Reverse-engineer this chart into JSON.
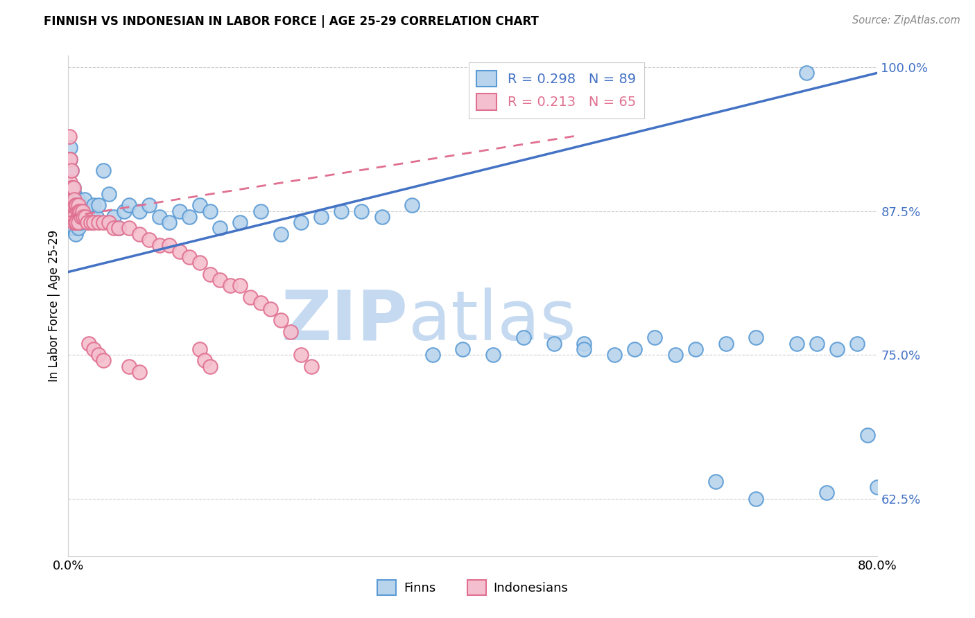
{
  "title": "FINNISH VS INDONESIAN IN LABOR FORCE | AGE 25-29 CORRELATION CHART",
  "source": "Source: ZipAtlas.com",
  "ylabel": "In Labor Force | Age 25-29",
  "xlim": [
    0.0,
    0.8
  ],
  "ylim": [
    0.575,
    1.01
  ],
  "yticks": [
    0.625,
    0.75,
    0.875,
    1.0
  ],
  "ytick_labels": [
    "62.5%",
    "75.0%",
    "87.5%",
    "100.0%"
  ],
  "xticks": [
    0.0,
    0.1,
    0.2,
    0.3,
    0.4,
    0.5,
    0.6,
    0.7,
    0.8
  ],
  "xtick_labels": [
    "0.0%",
    "",
    "",
    "",
    "",
    "",
    "",
    "",
    "80.0%"
  ],
  "finn_color": "#b8d4ed",
  "finn_edge_color": "#5b9bd5",
  "indonesian_color": "#f4bfce",
  "indonesian_edge_color": "#e07090",
  "finn_line_color": "#4472c4",
  "indo_line_color": "#e07090",
  "finn_R": 0.298,
  "finn_N": 89,
  "indonesian_R": 0.213,
  "indonesian_N": 65,
  "legend_label_finn": "Finns",
  "legend_label_indonesian": "Indonesians",
  "watermark_zip": "ZIP",
  "watermark_atlas": "atlas",
  "finn_line_x0": 0.0,
  "finn_line_y0": 0.822,
  "finn_line_x1": 0.8,
  "finn_line_y1": 0.995,
  "indo_line_x0": 0.0,
  "indo_line_y0": 0.87,
  "indo_line_x1": 0.5,
  "indo_line_y1": 0.94,
  "finn_scatter_x": [
    0.001,
    0.001,
    0.001,
    0.002,
    0.002,
    0.002,
    0.002,
    0.003,
    0.003,
    0.003,
    0.003,
    0.003,
    0.004,
    0.004,
    0.004,
    0.005,
    0.005,
    0.005,
    0.006,
    0.006,
    0.006,
    0.007,
    0.007,
    0.007,
    0.008,
    0.008,
    0.009,
    0.01,
    0.01,
    0.011,
    0.012,
    0.013,
    0.014,
    0.015,
    0.016,
    0.018,
    0.02,
    0.022,
    0.025,
    0.028,
    0.03,
    0.035,
    0.04,
    0.045,
    0.05,
    0.055,
    0.06,
    0.07,
    0.08,
    0.09,
    0.1,
    0.11,
    0.12,
    0.13,
    0.14,
    0.15,
    0.17,
    0.19,
    0.21,
    0.23,
    0.25,
    0.27,
    0.29,
    0.31,
    0.34,
    0.36,
    0.39,
    0.42,
    0.45,
    0.48,
    0.51,
    0.51,
    0.54,
    0.56,
    0.58,
    0.6,
    0.62,
    0.65,
    0.68,
    0.72,
    0.74,
    0.76,
    0.78,
    0.79,
    0.8,
    0.75,
    0.68,
    0.64,
    0.73
  ],
  "finn_scatter_y": [
    0.88,
    0.87,
    0.86,
    0.93,
    0.92,
    0.91,
    0.87,
    0.91,
    0.895,
    0.88,
    0.87,
    0.86,
    0.88,
    0.87,
    0.86,
    0.895,
    0.88,
    0.86,
    0.89,
    0.875,
    0.86,
    0.88,
    0.87,
    0.855,
    0.875,
    0.865,
    0.87,
    0.885,
    0.86,
    0.875,
    0.87,
    0.865,
    0.87,
    0.875,
    0.885,
    0.87,
    0.875,
    0.87,
    0.88,
    0.87,
    0.88,
    0.91,
    0.89,
    0.87,
    0.86,
    0.875,
    0.88,
    0.875,
    0.88,
    0.87,
    0.865,
    0.875,
    0.87,
    0.88,
    0.875,
    0.86,
    0.865,
    0.875,
    0.855,
    0.865,
    0.87,
    0.875,
    0.875,
    0.87,
    0.88,
    0.75,
    0.755,
    0.75,
    0.765,
    0.76,
    0.76,
    0.755,
    0.75,
    0.755,
    0.765,
    0.75,
    0.755,
    0.76,
    0.765,
    0.76,
    0.76,
    0.755,
    0.76,
    0.68,
    0.635,
    0.63,
    0.625,
    0.64,
    0.995
  ],
  "indo_scatter_x": [
    0.001,
    0.001,
    0.001,
    0.002,
    0.002,
    0.003,
    0.003,
    0.003,
    0.004,
    0.004,
    0.004,
    0.005,
    0.005,
    0.005,
    0.006,
    0.006,
    0.007,
    0.007,
    0.008,
    0.008,
    0.009,
    0.01,
    0.01,
    0.011,
    0.012,
    0.013,
    0.014,
    0.015,
    0.017,
    0.019,
    0.022,
    0.025,
    0.03,
    0.035,
    0.04,
    0.045,
    0.05,
    0.06,
    0.07,
    0.08,
    0.09,
    0.1,
    0.11,
    0.12,
    0.13,
    0.14,
    0.15,
    0.16,
    0.17,
    0.18,
    0.19,
    0.2,
    0.21,
    0.22,
    0.23,
    0.24,
    0.02,
    0.025,
    0.03,
    0.035,
    0.13,
    0.135,
    0.14,
    0.06,
    0.07
  ],
  "indo_scatter_y": [
    0.94,
    0.92,
    0.88,
    0.92,
    0.9,
    0.91,
    0.895,
    0.88,
    0.895,
    0.88,
    0.87,
    0.895,
    0.88,
    0.865,
    0.885,
    0.87,
    0.88,
    0.865,
    0.88,
    0.865,
    0.875,
    0.88,
    0.865,
    0.875,
    0.875,
    0.87,
    0.875,
    0.87,
    0.87,
    0.865,
    0.865,
    0.865,
    0.865,
    0.865,
    0.865,
    0.86,
    0.86,
    0.86,
    0.855,
    0.85,
    0.845,
    0.845,
    0.84,
    0.835,
    0.83,
    0.82,
    0.815,
    0.81,
    0.81,
    0.8,
    0.795,
    0.79,
    0.78,
    0.77,
    0.75,
    0.74,
    0.76,
    0.755,
    0.75,
    0.745,
    0.755,
    0.745,
    0.74,
    0.74,
    0.735
  ]
}
